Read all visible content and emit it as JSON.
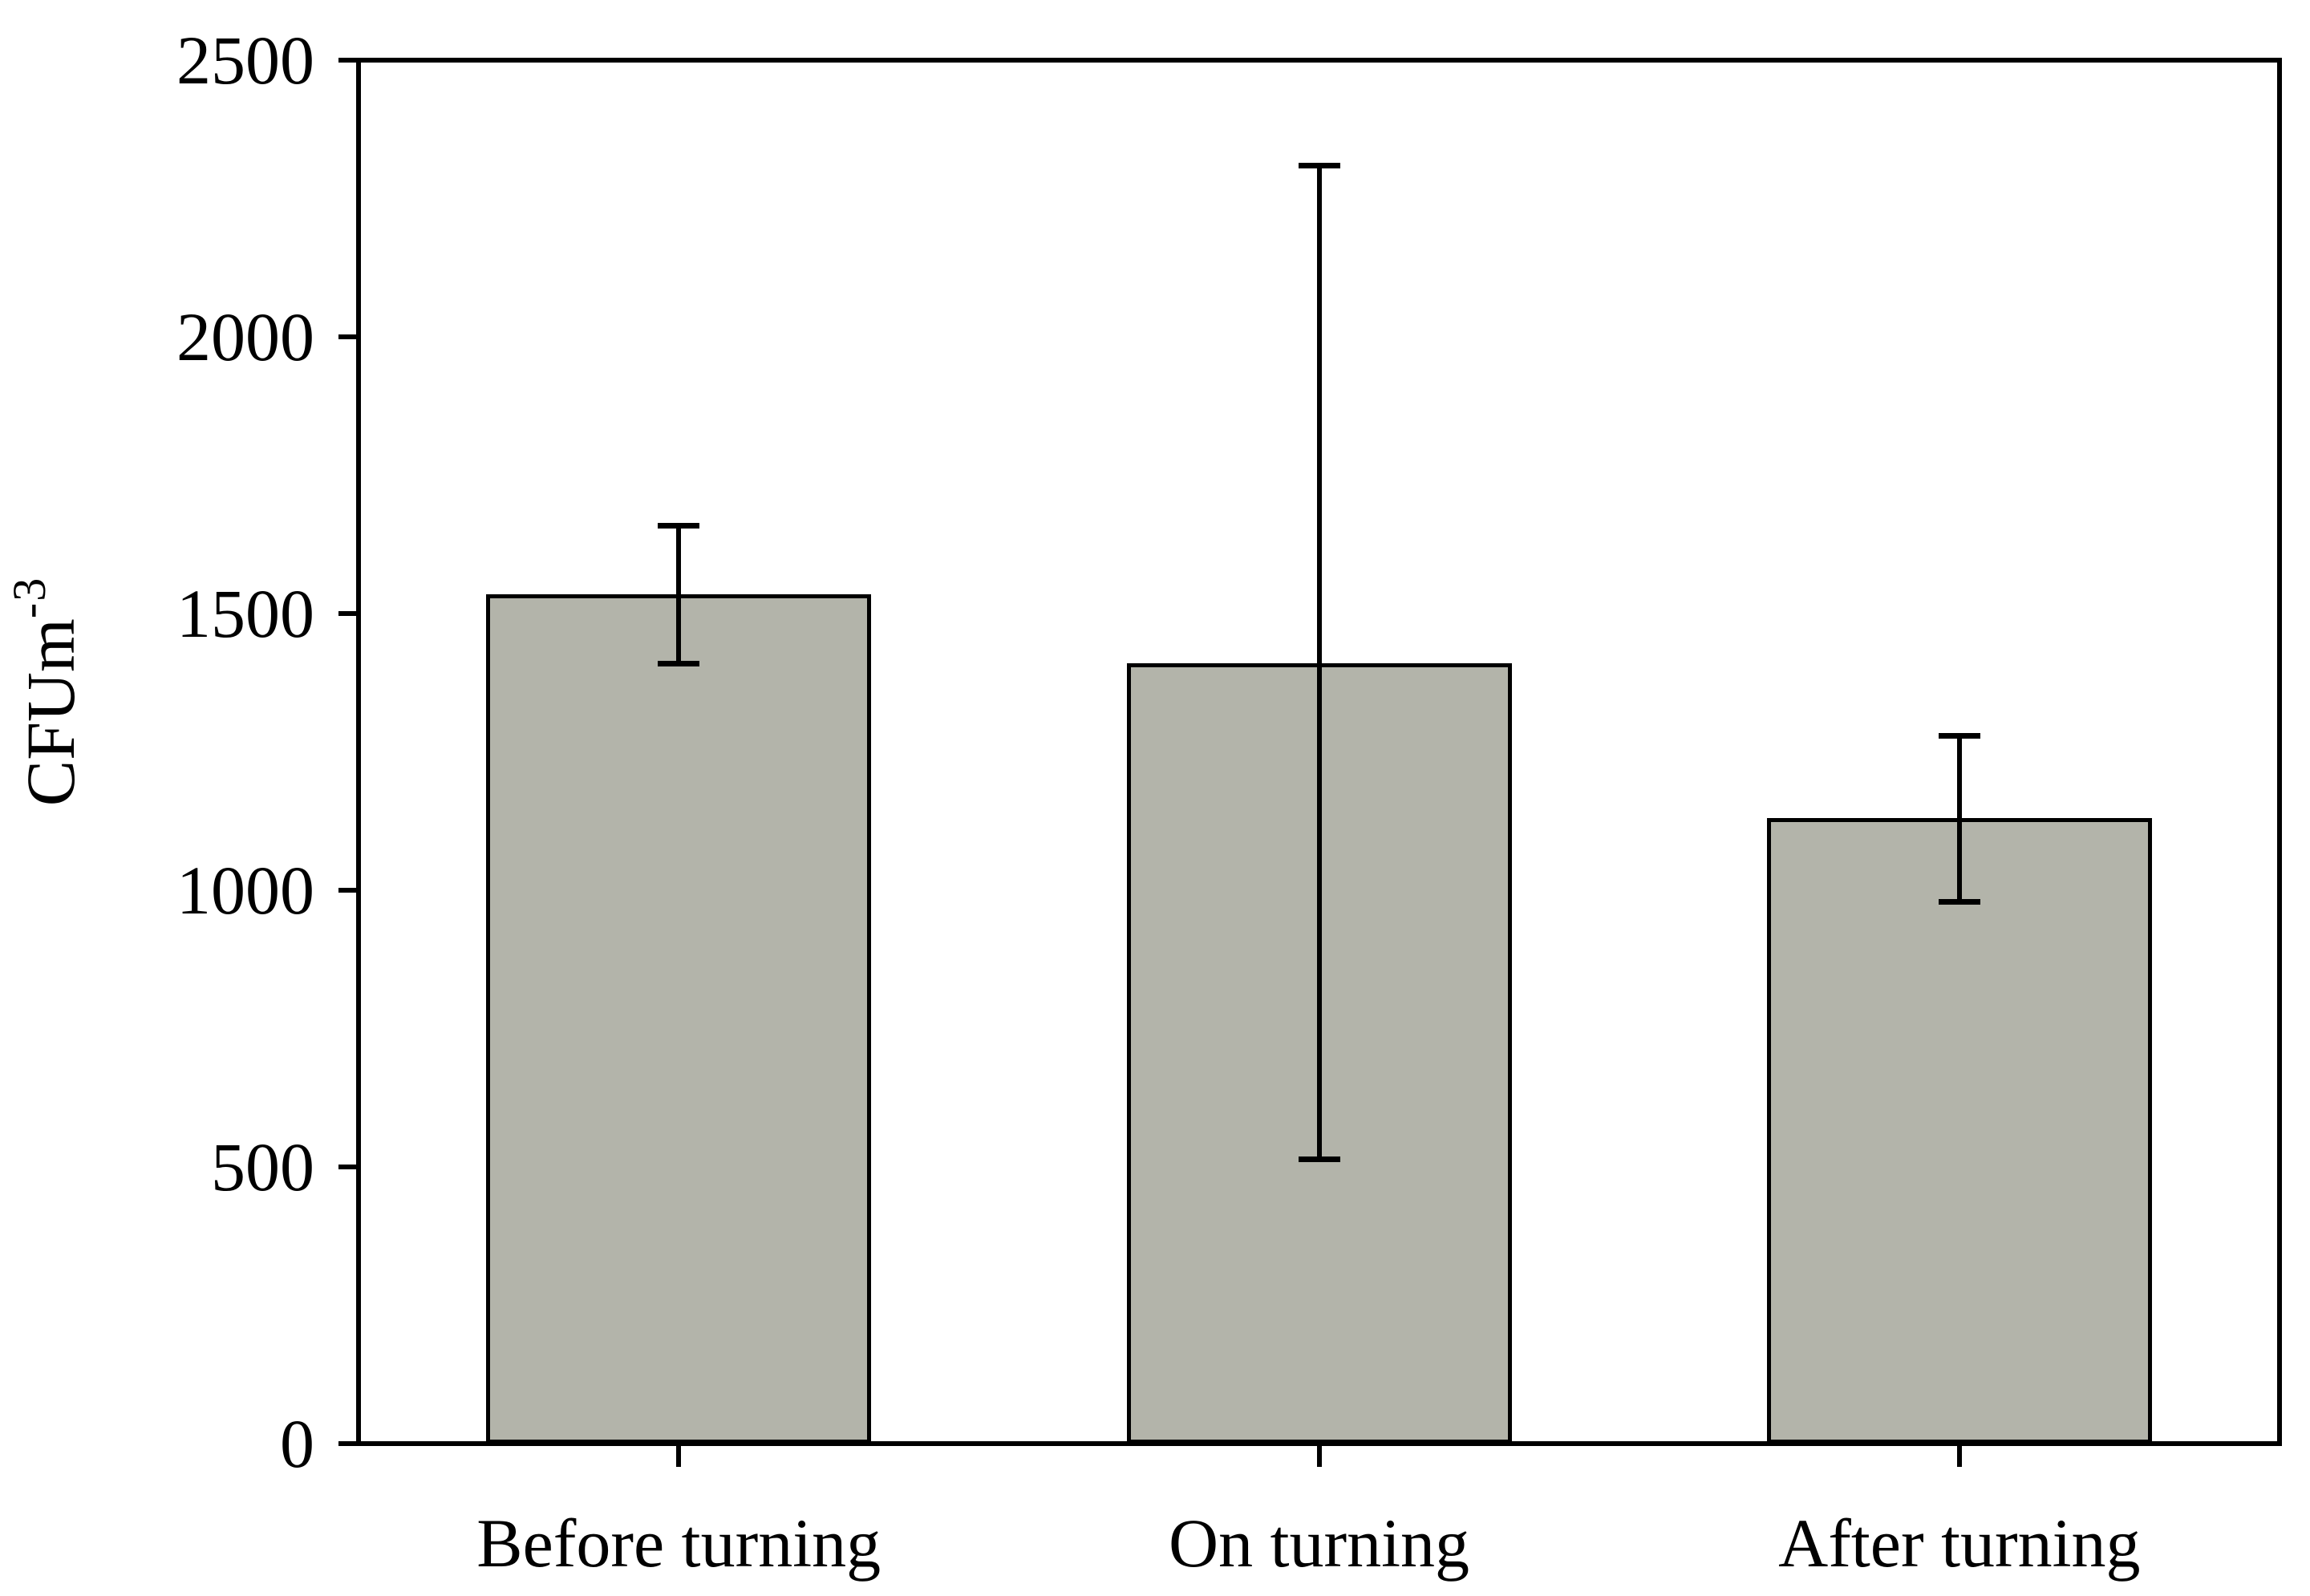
{
  "chart_data": {
    "type": "bar",
    "title": "",
    "categories": [
      "Before turning",
      "On turning",
      "After turning"
    ],
    "values": [
      1535,
      1410,
      1130
    ],
    "error_high": [
      1660,
      2310,
      1280
    ],
    "error_low": [
      1410,
      515,
      980
    ],
    "ylabel_base": "CFUm",
    "ylabel_exponent": "-3",
    "xlabel": "",
    "yticks": [
      "0",
      "500",
      "1000",
      "1500",
      "2000",
      "2500"
    ],
    "ytick_values": [
      0,
      500,
      1000,
      1500,
      2000,
      2500
    ],
    "ylim": [
      0,
      2500
    ],
    "grid": "off",
    "legend": "none",
    "colors": {
      "bar_fill": "#b3b4aa",
      "bar_border": "#000000",
      "axis": "#000000",
      "text": "#000000",
      "background": "#ffffff"
    }
  }
}
